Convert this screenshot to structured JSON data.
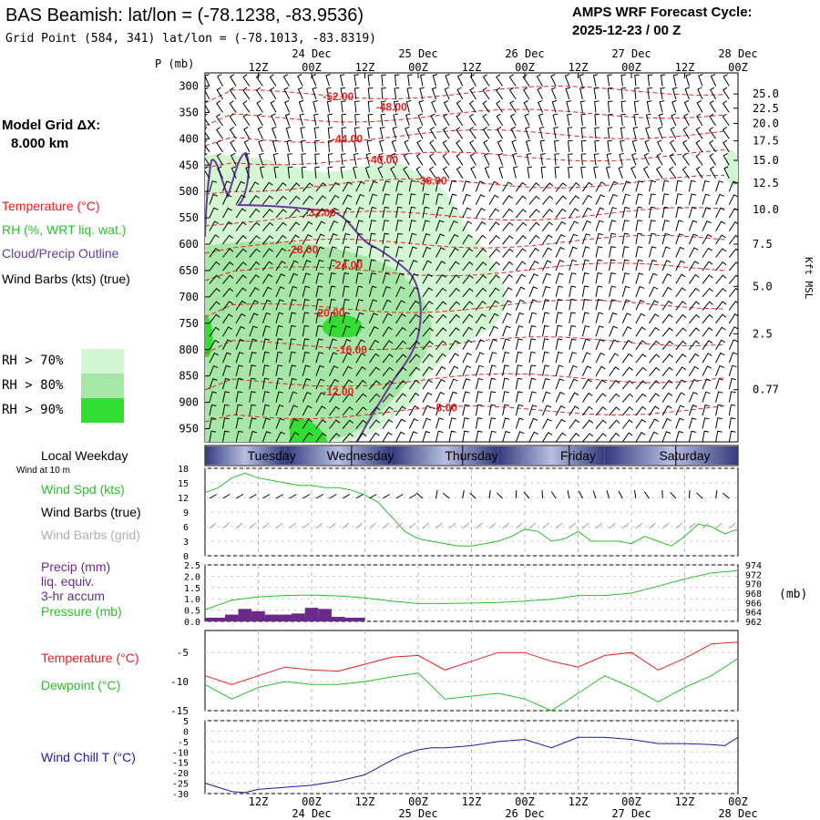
{
  "header": {
    "title": "BAS Beamish:  lat/lon = (-78.1238, -83.9536)",
    "grid_point": "Grid Point (584, 341) lat/lon = (-78.1013, -83.8319)",
    "forecast_label": "AMPS WRF Forecast Cycle:",
    "forecast_cycle": "2025-12-23 / 00  Z"
  },
  "left_panel": {
    "model_grid_label": "Model Grid ΔX:",
    "model_grid_value": "8.000 km",
    "legend_temperature": "Temperature (°C)",
    "legend_rh": "RH (%, WRT liq. wat.)",
    "legend_cloud": "Cloud/Precip Outline",
    "legend_wind": "Wind Barbs (kts) (true)",
    "rh_levels": [
      "RH > 70%",
      "RH > 80%",
      "RH > 90%"
    ],
    "local_weekday": "Local Weekday",
    "wind_at_10m": "Wind at 10 m",
    "wind_spd_label": "Wind Spd (kts)",
    "wind_barbs_true": "Wind Barbs (true)",
    "wind_barbs_grid": "Wind Barbs (grid)",
    "precip_label_1": "Precip (mm)",
    "precip_label_2": "liq. equiv.",
    "precip_label_3": "3-hr accum",
    "pressure_label": "Pressure (mb)",
    "temperature_label": "Temperature (°C)",
    "dewpoint_label": "Dewpoint (°C)",
    "windchill_label": "Wind Chill T (°C)"
  },
  "colors": {
    "temperature": "#e8201e",
    "rh": "#2bbf2b",
    "cloud": "#6a3a9a",
    "precip": "#6a2a8a",
    "windchill": "#1a1aa8",
    "grid_barbs": "#a0a0a0",
    "rh70": "#d3f7d3",
    "rh80": "#a6e6a6",
    "rh90": "#33dd33"
  },
  "chart_data": [
    {
      "type": "contour",
      "name": "cross-section",
      "y_axis_label": "P (mb)",
      "right_axis_label": "Kft MSL",
      "pressure_ticks": [
        300,
        350,
        400,
        450,
        500,
        550,
        600,
        650,
        700,
        750,
        800,
        850,
        900,
        950
      ],
      "height_ticks": [
        "25.0",
        "22.5",
        "20.0",
        "17.5",
        "15.0",
        "12.5",
        "10.0",
        "7.5",
        "5.0",
        "2.5",
        "0.77"
      ],
      "height_tick_pressures": [
        315,
        342,
        371,
        404,
        441,
        484,
        534,
        600,
        680,
        770,
        876
      ],
      "contour_labels": [
        {
          "text": "-52.00",
          "hour": 30,
          "p": 320
        },
        {
          "text": "-48.00",
          "hour": 42,
          "p": 340
        },
        {
          "text": "-44.00",
          "hour": 32,
          "p": 400
        },
        {
          "text": "-40.00",
          "hour": 40,
          "p": 440
        },
        {
          "text": "-36.00",
          "hour": 51,
          "p": 480
        },
        {
          "text": "-32.00",
          "hour": 26,
          "p": 540
        },
        {
          "text": "-28.00",
          "hour": 22,
          "p": 610
        },
        {
          "text": "-24.00",
          "hour": 32,
          "p": 640
        },
        {
          "text": "-20.00",
          "hour": 28,
          "p": 730
        },
        {
          "text": "-16.00",
          "hour": 33,
          "p": 800
        },
        {
          "text": "-12.00",
          "hour": 30,
          "p": 880
        },
        {
          "text": "-8.00",
          "hour": 54,
          "p": 910
        }
      ]
    },
    {
      "type": "line",
      "name": "wind-speed",
      "x_hours": [
        0,
        3,
        6,
        9,
        12,
        15,
        18,
        21,
        24,
        27,
        30,
        33,
        36,
        39,
        42,
        45,
        48,
        51,
        54,
        57,
        60,
        63,
        66,
        69,
        72,
        75,
        78,
        81,
        84,
        87,
        90,
        93,
        96,
        99,
        102,
        105,
        108,
        111,
        114,
        117,
        120
      ],
      "values": [
        13,
        14,
        16,
        17,
        16,
        15.5,
        15,
        14.5,
        14.5,
        14,
        14,
        13.5,
        12.5,
        11,
        8,
        5,
        3.5,
        3,
        2.5,
        2,
        2,
        2.5,
        3,
        4,
        5.5,
        5,
        3,
        3.5,
        5,
        3,
        3,
        3,
        2.5,
        4,
        3,
        2,
        4,
        6.5,
        6,
        4.5,
        5.5
      ],
      "y_ticks": [
        0,
        3,
        6,
        9,
        12,
        15,
        18
      ],
      "ylim": [
        0,
        18
      ]
    },
    {
      "type": "bar+line",
      "name": "precip-pressure",
      "precip_hours": [
        6,
        9,
        12,
        15,
        18,
        21,
        24,
        27,
        30
      ],
      "precip_values": [
        0.3,
        0.55,
        0.45,
        0.3,
        0.3,
        0.35,
        0.6,
        0.55,
        0.2
      ],
      "precip_y_ticks": [
        "0.0",
        "0.5",
        "1.0",
        "1.5",
        "2.0",
        "2.5"
      ],
      "pressure_x": [
        0,
        6,
        12,
        18,
        24,
        30,
        36,
        42,
        48,
        54,
        60,
        66,
        72,
        78,
        84,
        90,
        96,
        102,
        108,
        114,
        120
      ],
      "pressure_values": [
        964.5,
        966.5,
        967.2,
        967.5,
        967.6,
        967.4,
        967.0,
        966.3,
        965.8,
        965.8,
        965.9,
        966.0,
        966.3,
        966.7,
        967.5,
        967.5,
        968.0,
        969.5,
        971.0,
        972.3,
        972.8
      ],
      "pressure_ticks": [
        962,
        964,
        966,
        968,
        970,
        972,
        974
      ],
      "pressure_unit": "(mb)"
    },
    {
      "type": "line",
      "name": "temperature-dewpoint",
      "x_hours": [
        0,
        6,
        12,
        18,
        24,
        30,
        36,
        42,
        48,
        54,
        60,
        66,
        72,
        78,
        84,
        90,
        96,
        102,
        108,
        114,
        120
      ],
      "temperature": [
        -9.0,
        -10.5,
        -9.0,
        -7.5,
        -8.0,
        -8.2,
        -7.0,
        -5.8,
        -5.5,
        -8.0,
        -6.5,
        -5.0,
        -5.0,
        -6.5,
        -7.5,
        -5.5,
        -5.0,
        -8.0,
        -6.0,
        -3.5,
        -3.2
      ],
      "dewpoint": [
        -10.5,
        -13.0,
        -11.0,
        -10.0,
        -10.5,
        -10.5,
        -10.0,
        -9.2,
        -8.5,
        -13.0,
        -12.5,
        -12.0,
        -13.0,
        -15.0,
        -12.0,
        -9.0,
        -11.0,
        -13.5,
        -11.0,
        -9.0,
        -6.0
      ],
      "y_ticks": [
        -15,
        -10,
        -5
      ],
      "ylim": [
        -15,
        -1.2
      ]
    },
    {
      "type": "line",
      "name": "wind-chill",
      "x_hours": [
        0,
        3,
        6,
        9,
        12,
        18,
        24,
        30,
        36,
        42,
        45,
        48,
        51,
        54,
        60,
        66,
        72,
        78,
        84,
        90,
        96,
        102,
        108,
        114,
        117,
        120
      ],
      "values": [
        -25,
        -27,
        -29,
        -29.5,
        -28,
        -27,
        -26,
        -24,
        -21,
        -14,
        -11,
        -9,
        -8,
        -8,
        -7,
        -5,
        -4,
        -8,
        -3,
        -3,
        -4,
        -6,
        -6,
        -6.5,
        -7,
        -3
      ],
      "y_ticks": [
        -30,
        -25,
        -20,
        -15,
        -10,
        -5,
        0,
        5
      ],
      "ylim": [
        -30,
        5
      ]
    }
  ],
  "time_axis": {
    "top_hours": [
      "12Z",
      "00Z",
      "12Z",
      "00Z",
      "12Z",
      "00Z",
      "12Z",
      "00Z",
      "12Z",
      "00Z"
    ],
    "top_hours_x": [
      12,
      24,
      36,
      48,
      60,
      72,
      84,
      96,
      108,
      120
    ],
    "dates": [
      "24 Dec",
      "25 Dec",
      "26 Dec",
      "27 Dec",
      "28 Dec"
    ],
    "dates_x": [
      24,
      48,
      72,
      96,
      120
    ],
    "weekdays": [
      "Tuesday",
      "Wednesday",
      "Thursday",
      "Friday",
      "Saturday"
    ],
    "weekdays_x": [
      15,
      35,
      60,
      84,
      108
    ]
  }
}
